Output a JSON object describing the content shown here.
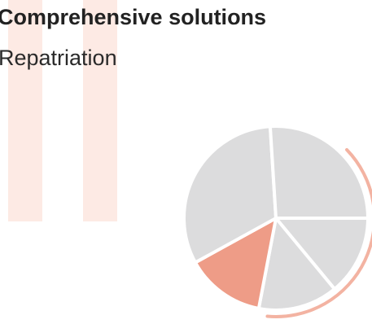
{
  "header": {
    "title": "Comprehensive solutions",
    "subtitle": "Repatriation"
  },
  "colors": {
    "highlight": "#ee9c87",
    "slice": "#dcdcdd",
    "stripe": "#fdeae4",
    "arc": "#f3b3a2"
  },
  "chart_data": {
    "type": "pie",
    "title": "",
    "slices": [
      {
        "value": 14,
        "highlighted": false
      },
      {
        "value": 14,
        "highlighted": false
      },
      {
        "value": 14,
        "highlighted": true
      },
      {
        "value": 32,
        "highlighted": false
      },
      {
        "value": 26,
        "highlighted": false
      }
    ],
    "highlight_outer_arc": true
  }
}
